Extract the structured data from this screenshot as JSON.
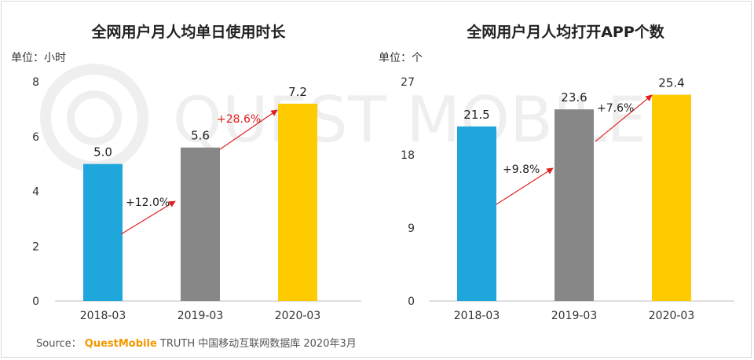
{
  "chart_data": [
    {
      "type": "bar",
      "title": "全网用户月人均单日使用时长",
      "unit_label": "单位：小时",
      "categories": [
        "2018-03",
        "2019-03",
        "2020-03"
      ],
      "values": [
        5.0,
        5.6,
        7.2
      ],
      "value_labels": [
        "5.0",
        "5.6",
        "7.2"
      ],
      "ylim": [
        0,
        8
      ],
      "yticks": [
        "0",
        "2",
        "4",
        "6",
        "8"
      ],
      "bar_colors": [
        "#1fa7dc",
        "#878787",
        "#fecb00"
      ],
      "growth": [
        {
          "label": "+12.0%",
          "color": "#222222"
        },
        {
          "label": "+28.6%",
          "color": "#e02020"
        }
      ]
    },
    {
      "type": "bar",
      "title": "全网用户月人均打开APP个数",
      "unit_label": "单位：个",
      "categories": [
        "2018-03",
        "2019-03",
        "2020-03"
      ],
      "values": [
        21.5,
        23.6,
        25.4
      ],
      "value_labels": [
        "21.5",
        "23.6",
        "25.4"
      ],
      "ylim": [
        0,
        27
      ],
      "yticks": [
        "0",
        "9",
        "18",
        "27"
      ],
      "bar_colors": [
        "#1fa7dc",
        "#878787",
        "#fecb00"
      ],
      "growth": [
        {
          "label": "+9.8%",
          "color": "#222222"
        },
        {
          "label": "+7.6%",
          "color": "#222222"
        }
      ]
    }
  ],
  "colors": {
    "arrow": "#e02020",
    "axis": "#bfbfbf"
  },
  "source": {
    "prefix": "Source：",
    "brand": "QuestMobile",
    "suffix": "TRUTH 中国移动互联网数据库 2020年3月"
  },
  "watermark": {
    "text": "QUEST MOBILE"
  }
}
